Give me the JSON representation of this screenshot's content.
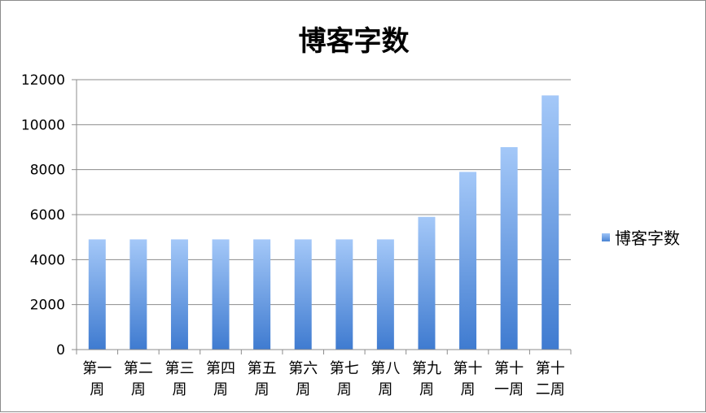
{
  "colors": {
    "bar_top": "#a4c8f8",
    "bar_bottom": "#3f7bd0",
    "grid": "#8c8c8c",
    "axis": "#8c8c8c"
  },
  "chart_data": {
    "type": "bar",
    "title": "博客字数",
    "xlabel": "",
    "ylabel": "",
    "categories": [
      [
        "第一",
        "周"
      ],
      [
        "第二",
        "周"
      ],
      [
        "第三",
        "周"
      ],
      [
        "第四",
        "周"
      ],
      [
        "第五",
        "周"
      ],
      [
        "第六",
        "周"
      ],
      [
        "第七",
        "周"
      ],
      [
        "第八",
        "周"
      ],
      [
        "第九",
        "周"
      ],
      [
        "第十",
        "周"
      ],
      [
        "第十",
        "一周"
      ],
      [
        "第十",
        "二周"
      ]
    ],
    "series": [
      {
        "name": "博客字数",
        "values": [
          4900,
          4900,
          4900,
          4900,
          4900,
          4900,
          4900,
          4900,
          5900,
          7900,
          9000,
          11300
        ]
      }
    ],
    "ylim": [
      0,
      12000
    ],
    "yticks": [
      "0",
      "2000",
      "4000",
      "6000",
      "8000",
      "10000",
      "12000"
    ],
    "grid": true,
    "legend_position": "right"
  }
}
